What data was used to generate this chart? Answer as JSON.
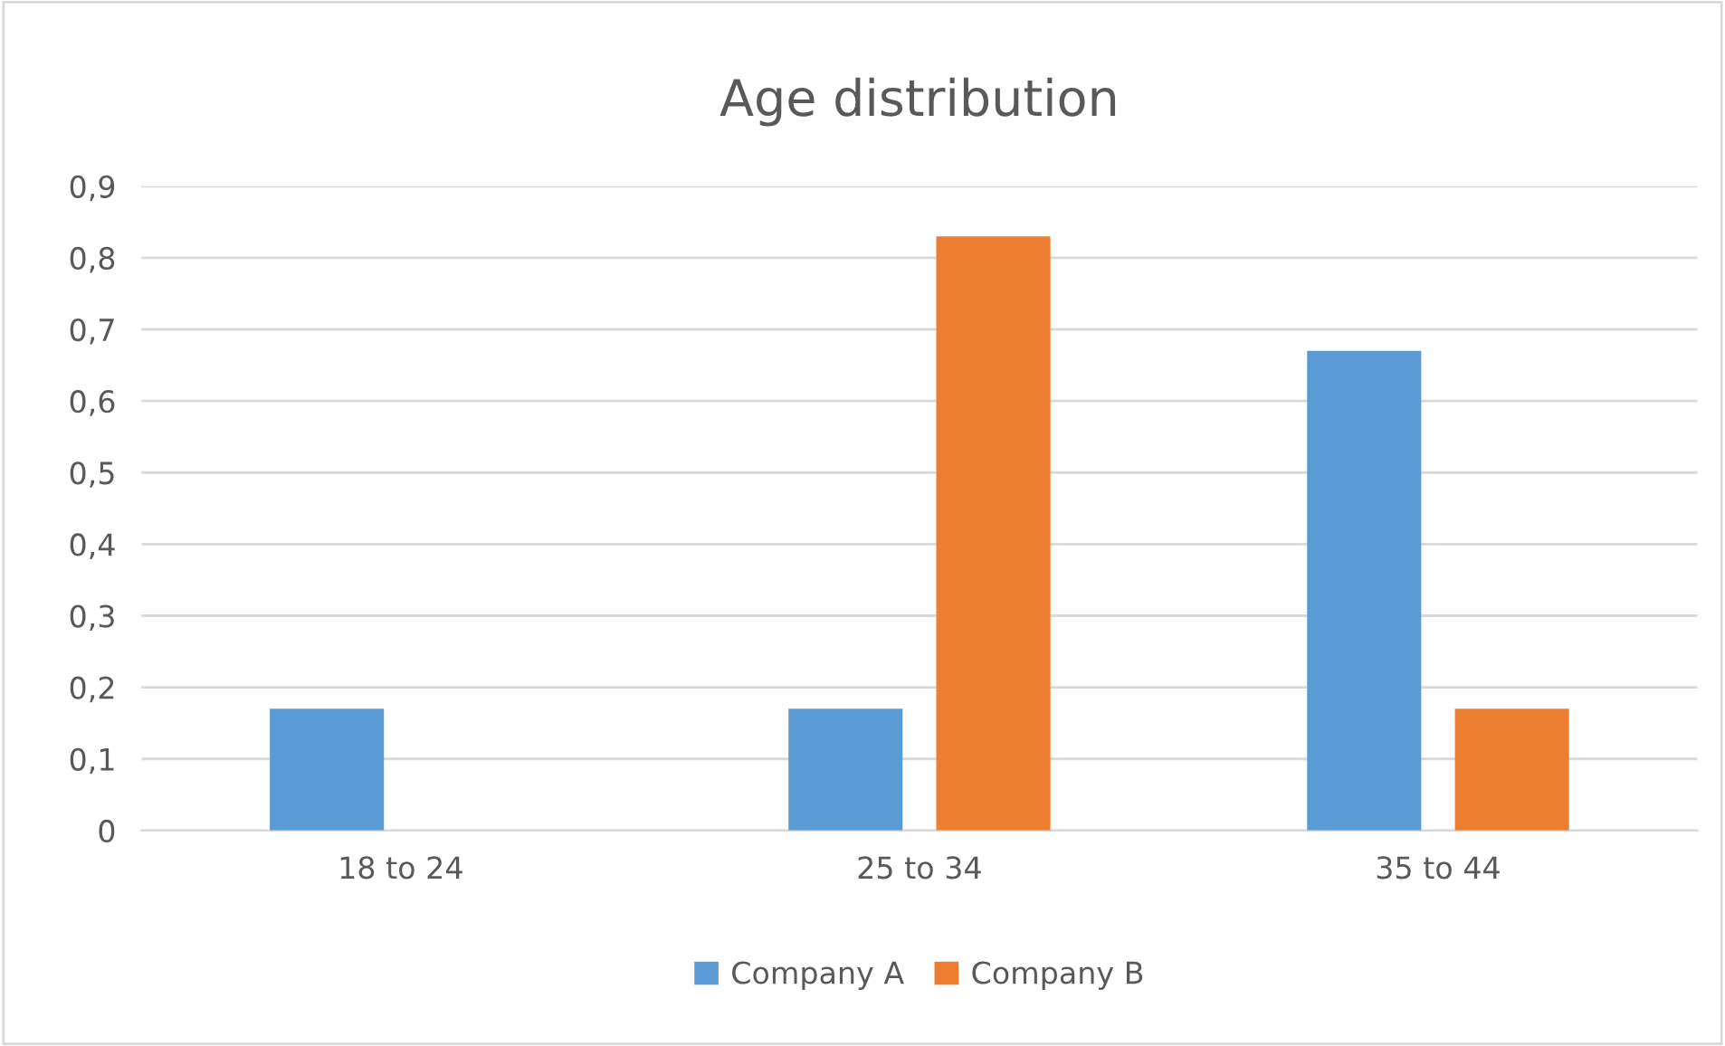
{
  "chart_data": {
    "type": "bar",
    "title": "Age distribution",
    "categories": [
      "18 to 24",
      "25 to 34",
      "35 to 44"
    ],
    "series": [
      {
        "name": "Company A",
        "color": "#5b9bd5",
        "values": [
          0.17,
          0.17,
          0.67
        ]
      },
      {
        "name": "Company B",
        "color": "#ed7d31",
        "values": [
          0,
          0.83,
          0.17
        ]
      }
    ],
    "ylim": [
      0,
      0.9
    ],
    "yticks": [
      0,
      {
        "value": 0.1,
        "label": "0,1"
      },
      {
        "value": 0.2,
        "label": "0,2"
      },
      {
        "value": 0.3,
        "label": "0,3"
      },
      {
        "value": 0.4,
        "label": "0,4"
      },
      {
        "value": 0.5,
        "label": "0,5"
      },
      {
        "value": 0.6,
        "label": "0,6"
      },
      {
        "value": 0.7,
        "label": "0,7"
      },
      {
        "value": 0.8,
        "label": "0,8"
      },
      {
        "value": 0.9,
        "label": "0,9"
      }
    ],
    "grid": "y",
    "legend": "bottom"
  }
}
